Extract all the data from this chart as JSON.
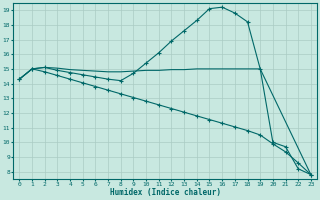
{
  "xlabel": "Humidex (Indice chaleur)",
  "bg_color": "#c8e8e0",
  "grid_color": "#aaccc4",
  "line_color": "#006868",
  "xlim": [
    -0.5,
    23.5
  ],
  "ylim": [
    7.5,
    19.5
  ],
  "yticks": [
    8,
    9,
    10,
    11,
    12,
    13,
    14,
    15,
    16,
    17,
    18,
    19
  ],
  "xticks": [
    0,
    1,
    2,
    3,
    4,
    5,
    6,
    7,
    8,
    9,
    10,
    11,
    12,
    13,
    14,
    15,
    16,
    17,
    18,
    19,
    20,
    21,
    22,
    23
  ],
  "line1_x": [
    0,
    1,
    2,
    3,
    4,
    5,
    6,
    7,
    8,
    9,
    10,
    11,
    12,
    13,
    14,
    15,
    16,
    17,
    18,
    19,
    20,
    21,
    22,
    23
  ],
  "line1_y": [
    14.3,
    15.0,
    15.1,
    14.9,
    14.75,
    14.6,
    14.45,
    14.3,
    14.2,
    14.7,
    15.4,
    16.1,
    16.9,
    17.6,
    18.3,
    19.1,
    19.2,
    18.8,
    18.2,
    15.0,
    10.0,
    9.7,
    8.2,
    7.8
  ],
  "line2_x": [
    0,
    1,
    2,
    3,
    4,
    5,
    6,
    7,
    8,
    9,
    10,
    11,
    12,
    13,
    14,
    18,
    19,
    23
  ],
  "line2_y": [
    14.3,
    15.0,
    15.1,
    15.05,
    14.95,
    14.9,
    14.85,
    14.8,
    14.8,
    14.85,
    14.9,
    14.9,
    14.95,
    14.95,
    15.0,
    15.0,
    15.0,
    7.8
  ],
  "line3_x": [
    0,
    1,
    2,
    3,
    4,
    5,
    6,
    7,
    8,
    9,
    10,
    11,
    12,
    13,
    14,
    15,
    16,
    17,
    18,
    19,
    20,
    21,
    22,
    23
  ],
  "line3_y": [
    14.3,
    15.0,
    14.8,
    14.55,
    14.3,
    14.05,
    13.8,
    13.55,
    13.3,
    13.05,
    12.8,
    12.55,
    12.3,
    12.05,
    11.8,
    11.55,
    11.3,
    11.05,
    10.8,
    10.5,
    9.9,
    9.35,
    8.6,
    7.8
  ]
}
